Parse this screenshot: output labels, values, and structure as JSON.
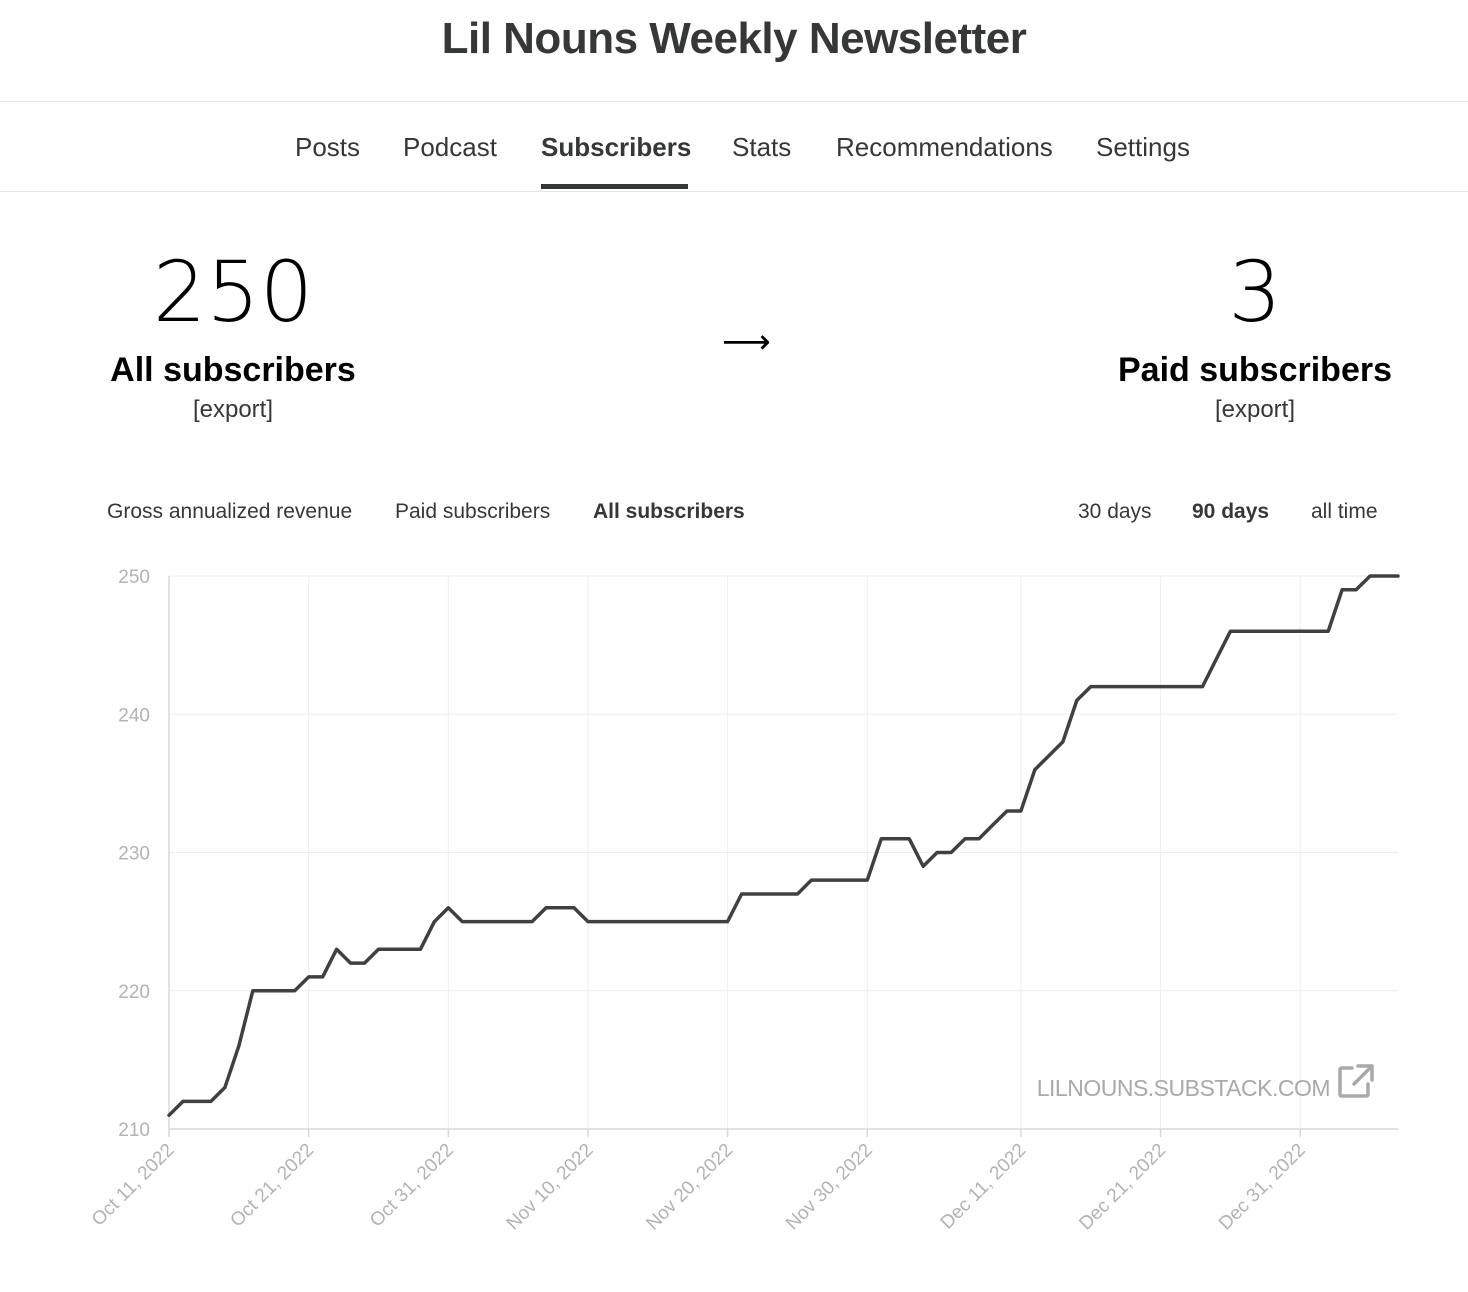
{
  "publication": {
    "title": "Lil Nouns Weekly Newsletter"
  },
  "nav": {
    "items": [
      {
        "label": "Posts"
      },
      {
        "label": "Podcast"
      },
      {
        "label": "Subscribers"
      },
      {
        "label": "Stats"
      },
      {
        "label": "Recommendations"
      },
      {
        "label": "Settings"
      }
    ],
    "active": "Subscribers"
  },
  "summary": {
    "all": {
      "number": "250",
      "label": "All subscribers",
      "export": "[export]"
    },
    "arrow": "⟶",
    "paid": {
      "number": "3",
      "label": "Paid subscribers",
      "export": "[export]"
    }
  },
  "chart_tabs": {
    "metrics": [
      {
        "label": "Gross annualized revenue"
      },
      {
        "label": "Paid subscribers"
      },
      {
        "label": "All subscribers"
      }
    ],
    "active_metric": "All subscribers",
    "ranges": [
      {
        "label": "30 days"
      },
      {
        "label": "90 days"
      },
      {
        "label": "all time"
      }
    ],
    "active_range": "90 days"
  },
  "watermark": {
    "text": "LILNOUNS.SUBSTACK.COM",
    "icon": "external-link-icon"
  },
  "colors": {
    "line": "#404040",
    "grid": "#eeeeee",
    "axis": "#d9d9d9",
    "text": "#363737"
  },
  "chart_data": {
    "type": "line",
    "title": "",
    "xlabel": "",
    "ylabel": "",
    "ylim": [
      210,
      250
    ],
    "xlim": [
      "2022-10-11",
      "2023-01-07"
    ],
    "grid": true,
    "yticks": [
      210,
      220,
      230,
      240,
      250
    ],
    "xticks": [
      "2022-10-11",
      "2022-10-21",
      "2022-10-31",
      "2022-11-10",
      "2022-11-20",
      "2022-11-30",
      "2022-12-11",
      "2022-12-21",
      "2022-12-31"
    ],
    "xtick_labels": [
      "Oct 11, 2022",
      "Oct 21, 2022",
      "Oct 31, 2022",
      "Nov 10, 2022",
      "Nov 20, 2022",
      "Nov 30, 2022",
      "Dec 11, 2022",
      "Dec 21, 2022",
      "Dec 31, 2022"
    ],
    "series": [
      {
        "name": "",
        "points": [
          [
            "2022-10-11",
            211
          ],
          [
            "2022-10-12",
            212
          ],
          [
            "2022-10-13",
            212
          ],
          [
            "2022-10-14",
            212
          ],
          [
            "2022-10-15",
            213
          ],
          [
            "2022-10-16",
            216
          ],
          [
            "2022-10-17",
            220
          ],
          [
            "2022-10-18",
            220
          ],
          [
            "2022-10-19",
            220
          ],
          [
            "2022-10-20",
            220
          ],
          [
            "2022-10-21",
            221
          ],
          [
            "2022-10-22",
            221
          ],
          [
            "2022-10-23",
            223
          ],
          [
            "2022-10-24",
            222
          ],
          [
            "2022-10-25",
            222
          ],
          [
            "2022-10-26",
            223
          ],
          [
            "2022-10-27",
            223
          ],
          [
            "2022-10-28",
            223
          ],
          [
            "2022-10-29",
            223
          ],
          [
            "2022-10-30",
            225
          ],
          [
            "2022-10-31",
            226
          ],
          [
            "2022-11-01",
            225
          ],
          [
            "2022-11-02",
            225
          ],
          [
            "2022-11-03",
            225
          ],
          [
            "2022-11-04",
            225
          ],
          [
            "2022-11-05",
            225
          ],
          [
            "2022-11-06",
            225
          ],
          [
            "2022-11-07",
            226
          ],
          [
            "2022-11-08",
            226
          ],
          [
            "2022-11-09",
            226
          ],
          [
            "2022-11-10",
            225
          ],
          [
            "2022-11-11",
            225
          ],
          [
            "2022-11-12",
            225
          ],
          [
            "2022-11-13",
            225
          ],
          [
            "2022-11-14",
            225
          ],
          [
            "2022-11-15",
            225
          ],
          [
            "2022-11-16",
            225
          ],
          [
            "2022-11-17",
            225
          ],
          [
            "2022-11-18",
            225
          ],
          [
            "2022-11-19",
            225
          ],
          [
            "2022-11-20",
            225
          ],
          [
            "2022-11-21",
            227
          ],
          [
            "2022-11-22",
            227
          ],
          [
            "2022-11-23",
            227
          ],
          [
            "2022-11-24",
            227
          ],
          [
            "2022-11-25",
            227
          ],
          [
            "2022-11-26",
            228
          ],
          [
            "2022-11-27",
            228
          ],
          [
            "2022-11-28",
            228
          ],
          [
            "2022-11-29",
            228
          ],
          [
            "2022-11-30",
            228
          ],
          [
            "2022-12-01",
            231
          ],
          [
            "2022-12-02",
            231
          ],
          [
            "2022-12-03",
            231
          ],
          [
            "2022-12-04",
            229
          ],
          [
            "2022-12-05",
            230
          ],
          [
            "2022-12-06",
            230
          ],
          [
            "2022-12-07",
            231
          ],
          [
            "2022-12-08",
            231
          ],
          [
            "2022-12-09",
            232
          ],
          [
            "2022-12-10",
            233
          ],
          [
            "2022-12-11",
            233
          ],
          [
            "2022-12-12",
            236
          ],
          [
            "2022-12-13",
            237
          ],
          [
            "2022-12-14",
            238
          ],
          [
            "2022-12-15",
            241
          ],
          [
            "2022-12-16",
            242
          ],
          [
            "2022-12-17",
            242
          ],
          [
            "2022-12-18",
            242
          ],
          [
            "2022-12-19",
            242
          ],
          [
            "2022-12-20",
            242
          ],
          [
            "2022-12-21",
            242
          ],
          [
            "2022-12-22",
            242
          ],
          [
            "2022-12-23",
            242
          ],
          [
            "2022-12-24",
            242
          ],
          [
            "2022-12-25",
            244
          ],
          [
            "2022-12-26",
            246
          ],
          [
            "2022-12-27",
            246
          ],
          [
            "2022-12-28",
            246
          ],
          [
            "2022-12-29",
            246
          ],
          [
            "2022-12-30",
            246
          ],
          [
            "2022-12-31",
            246
          ],
          [
            "2023-01-01",
            246
          ],
          [
            "2023-01-02",
            246
          ],
          [
            "2023-01-03",
            249
          ],
          [
            "2023-01-04",
            249
          ],
          [
            "2023-01-05",
            250
          ],
          [
            "2023-01-06",
            250
          ],
          [
            "2023-01-07",
            250
          ]
        ]
      }
    ]
  }
}
